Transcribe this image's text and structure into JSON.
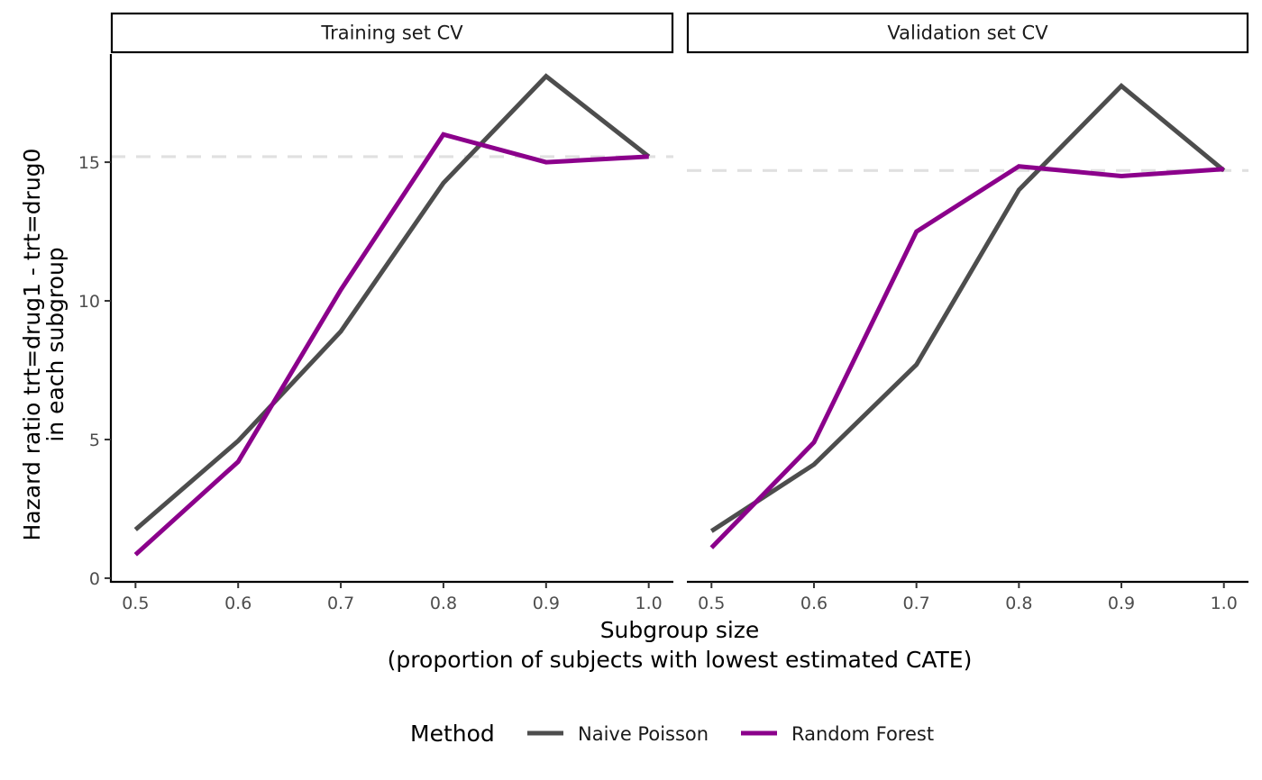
{
  "chart_data": {
    "type": "line",
    "ylabel_lines": [
      "Hazard ratio trt=drug1 - trt=drug0",
      "in each subgroup"
    ],
    "xlabel_lines": [
      "Subgroup size",
      "(proportion of subjects with lowest estimated CATE)"
    ],
    "x_ticks": [
      0.5,
      0.6,
      0.7,
      0.8,
      0.9,
      1.0
    ],
    "x_tick_labels": [
      "0.5",
      "0.6",
      "0.7",
      "0.8",
      "0.9",
      "1.0"
    ],
    "y_ticks": [
      0,
      5,
      10,
      15
    ],
    "y_tick_labels": [
      "0",
      "5",
      "10",
      "15"
    ],
    "xlim": [
      0.476,
      1.024
    ],
    "ylim": [
      -0.1,
      18.9
    ],
    "grid": false,
    "legend_position": "bottom",
    "legend_title": "Method",
    "facets": [
      {
        "title": "Training set CV",
        "reference_line": 15.2,
        "series": [
          {
            "name": "Naive Poisson",
            "color": "#4d4d4d",
            "x": [
              0.5,
              0.6,
              0.7,
              0.8,
              0.9,
              1.0
            ],
            "y": [
              1.75,
              4.95,
              8.9,
              14.25,
              18.1,
              15.2
            ]
          },
          {
            "name": "Random Forest",
            "color": "#8b008b",
            "x": [
              0.5,
              0.6,
              0.7,
              0.8,
              0.9,
              1.0
            ],
            "y": [
              0.85,
              4.2,
              10.4,
              16.0,
              15.0,
              15.2
            ]
          }
        ]
      },
      {
        "title": "Validation set CV",
        "reference_line": 14.7,
        "series": [
          {
            "name": "Naive Poisson",
            "color": "#4d4d4d",
            "x": [
              0.5,
              0.6,
              0.7,
              0.8,
              0.9,
              1.0
            ],
            "y": [
              1.7,
              4.1,
              7.7,
              14.0,
              17.75,
              14.7
            ]
          },
          {
            "name": "Random Forest",
            "color": "#8b008b",
            "x": [
              0.5,
              0.6,
              0.7,
              0.8,
              0.9,
              1.0
            ],
            "y": [
              1.1,
              4.9,
              12.5,
              14.85,
              14.5,
              14.75
            ]
          }
        ]
      }
    ]
  }
}
